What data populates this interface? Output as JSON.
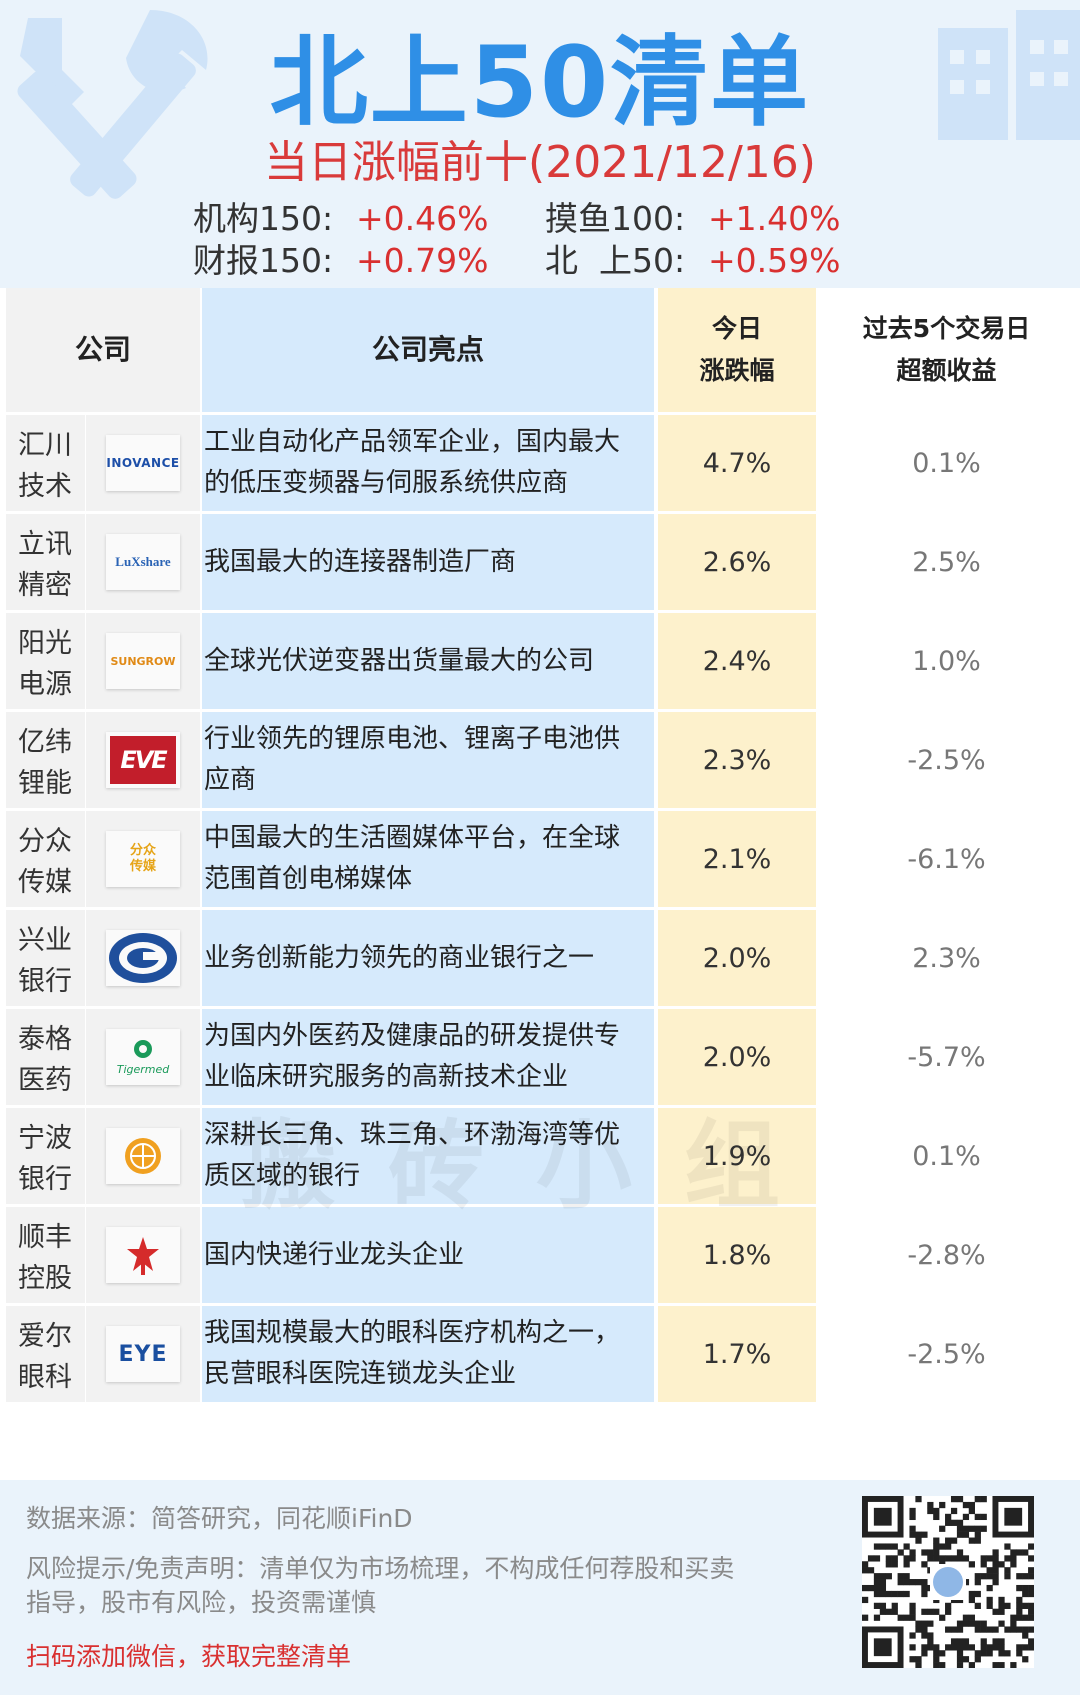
{
  "header": {
    "title": "北上50清单",
    "subtitle": "当日涨幅前十(2021/12/16)",
    "indices": [
      {
        "label": "机构150:",
        "value": "+0.46%"
      },
      {
        "label": "摸鱼100:",
        "value": "+1.40%"
      },
      {
        "label": "财报150:",
        "value": "+0.79%"
      },
      {
        "label": "北  上50:",
        "value": "+0.59%"
      }
    ]
  },
  "table": {
    "headers": {
      "company": "公司",
      "highlight": "公司亮点",
      "today_line1": "今日",
      "today_line2": "涨跌幅",
      "excess_line1": "过去5个交易日",
      "excess_line2": "超额收益"
    },
    "rows": [
      {
        "name_line1": "汇川",
        "name_line2": "技术",
        "logo_text": "INOVANCE",
        "logo_icon": "inovance-logo",
        "highlight_line1": "工业自动化产品领军企业，国内最大",
        "highlight_line2": "的低压变频器与伺服系统供应商",
        "today": "4.7%",
        "excess": "0.1%"
      },
      {
        "name_line1": "立讯",
        "name_line2": "精密",
        "logo_text": "LuXshare",
        "logo_icon": "luxshare-logo",
        "highlight_line1": "我国最大的连接器制造厂商",
        "highlight_line2": "",
        "today": "2.6%",
        "excess": "2.5%"
      },
      {
        "name_line1": "阳光",
        "name_line2": "电源",
        "logo_text": "SUNGROW",
        "logo_icon": "sungrow-logo",
        "highlight_line1": "全球光伏逆变器出货量最大的公司",
        "highlight_line2": "",
        "today": "2.4%",
        "excess": "1.0%"
      },
      {
        "name_line1": "亿纬",
        "name_line2": "锂能",
        "logo_text": "EVE",
        "logo_icon": "eve-logo",
        "highlight_line1": "行业领先的锂原电池、锂离子电池供",
        "highlight_line2": "应商",
        "today": "2.3%",
        "excess": "-2.5%"
      },
      {
        "name_line1": "分众",
        "name_line2": "传媒",
        "logo_text": "分众传媒",
        "logo_icon": "focus-media-logo",
        "highlight_line1": "中国最大的生活圈媒体平台，在全球",
        "highlight_line2": "范围首创电梯媒体",
        "today": "2.1%",
        "excess": "-6.1%"
      },
      {
        "name_line1": "兴业",
        "name_line2": "银行",
        "logo_text": "",
        "logo_icon": "industrial-bank-logo",
        "highlight_line1": "业务创新能力领先的商业银行之一",
        "highlight_line2": "",
        "today": "2.0%",
        "excess": "2.3%"
      },
      {
        "name_line1": "泰格",
        "name_line2": "医药",
        "logo_text": "Tigermed",
        "logo_icon": "tigermed-logo",
        "highlight_line1": "为国内外医药及健康品的研发提供专",
        "highlight_line2": "业临床研究服务的高新技术企业",
        "today": "2.0%",
        "excess": "-5.7%"
      },
      {
        "name_line1": "宁波",
        "name_line2": "银行",
        "logo_text": "",
        "logo_icon": "bank-of-ningbo-logo",
        "highlight_line1": "深耕长三角、珠三角、环渤海湾等优",
        "highlight_line2": "质区域的银行",
        "today": "1.9%",
        "excess": "0.1%"
      },
      {
        "name_line1": "顺丰",
        "name_line2": "控股",
        "logo_text": "",
        "logo_icon": "sf-holding-logo",
        "highlight_line1": "国内快递行业龙头企业",
        "highlight_line2": "",
        "today": "1.8%",
        "excess": "-2.8%"
      },
      {
        "name_line1": "爱尔",
        "name_line2": "眼科",
        "logo_text": "EYE",
        "logo_icon": "aier-eye-logo",
        "highlight_line1": "我国规模最大的眼科医疗机构之一，",
        "highlight_line2": "民营眼科医院连锁龙头企业",
        "today": "1.7%",
        "excess": "-2.5%"
      }
    ]
  },
  "watermark": "搬砖小组",
  "footer": {
    "source": "数据来源：简答研究，同花顺iFinD",
    "risk_line1": "风险提示/免责声明：清单仅为市场梳理，不构成任何荐股和买卖",
    "risk_line2": "指导，股市有风险，投资需谨慎",
    "cta": "扫码添加微信，获取完整清单"
  },
  "icons": {
    "top_left": "wrench-fork-icon",
    "top_right": "building-icon",
    "qr": "qr-code-icon"
  },
  "colors": {
    "title": "#2f8fe6",
    "subtitle": "#d93a3a",
    "positive": "#d93030",
    "highlight_bg": "#d6eafc",
    "today_bg": "#fdf1cc",
    "company_bg": "#f2f2f2"
  }
}
